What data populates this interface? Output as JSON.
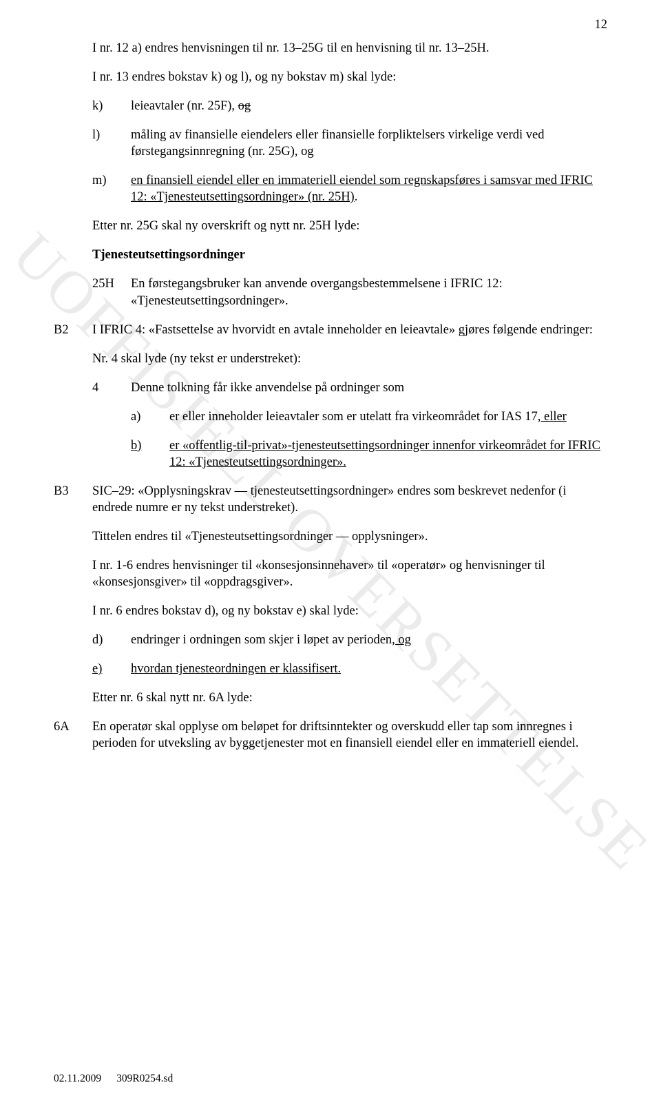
{
  "page_number": "12",
  "watermark": "UOFFISIELL OVERSETTELSE",
  "p1": "I nr. 12 a) endres henvisningen til nr. 13–25G til en henvisning til nr. 13–25H.",
  "p2": "I nr. 13 endres bokstav k) og l), og ny bokstav m) skal lyde:",
  "k": {
    "label": "k)",
    "text_pre": "leieavtaler (nr. 25F), ",
    "strike": "og"
  },
  "l": {
    "label": "l)",
    "text": "måling av finansielle eiendelers eller finansielle forpliktelsers virkelige verdi ved førstegangsinnregning (nr. 25G), og"
  },
  "m": {
    "label": "m)",
    "text_ul": "en finansiell eiendel eller en immateriell eiendel som regnskapsføres i samsvar med IFRIC 12: «Tjenesteutsettingsordninger» (nr. 25H)",
    "text_tail": "."
  },
  "p3": "Etter nr. 25G skal ny overskrift og nytt nr. 25H lyde:",
  "heading_bold": "Tjenesteutsettingsordninger",
  "h25H": {
    "label": "25H",
    "text": "En førstegangsbruker kan anvende overgangsbestemmelsene i IFRIC 12: «Tjenesteutsettingsordninger»."
  },
  "B2": {
    "label": "B2",
    "text": "I IFRIC 4: «Fastsettelse av hvorvidt en avtale inneholder en leieavtale» gjøres følgende endringer:"
  },
  "p4": "Nr. 4 skal lyde (ny tekst er understreket):",
  "item4": {
    "label": "4",
    "text": "Denne tolkning får ikke anvendelse på ordninger som"
  },
  "a": {
    "label": "a)",
    "pre": "er eller inneholder leieavtaler som er utelatt fra virkeområdet for IAS 17",
    "ul1": ", eller"
  },
  "b": {
    "label": "b)",
    "ul": "er «offentlig-til-privat»-tjenesteutsettingsordninger innenfor virkeområdet for IFRIC 12: «Tjenesteutsettingsordninger».",
    "tail": ""
  },
  "B3": {
    "label": "B3",
    "text": "SIC–29: «Opplysningskrav — tjenesteutsettingsordninger» endres som beskrevet nedenfor (i endrede numre er ny tekst understreket)."
  },
  "p5": "Tittelen endres til «Tjenesteutsettingsordninger — opplysninger».",
  "p6": "I nr. 1-6 endres henvisninger til «konsesjonsinnehaver» til «operatør» og henvisninger til «konsesjonsgiver» til «oppdragsgiver».",
  "p7": "I nr. 6 endres bokstav d), og ny bokstav e) skal lyde:",
  "d": {
    "label": "d)",
    "pre": "endringer i ordningen som skjer i løpet av perioden",
    "ul": ", og"
  },
  "e": {
    "label": "e)",
    "ul_label": "e)",
    "ul": "hvordan tjenesteordningen er klassifisert.",
    "tail": ""
  },
  "p8": "Etter nr. 6 skal nytt nr. 6A lyde:",
  "sixA": {
    "label": "6A",
    "text": "En operatør skal opplyse om beløpet for driftsinntekter og overskudd eller tap som innregnes i perioden for utveksling av byggetjenester mot en finansiell eiendel eller en immateriell eiendel."
  },
  "footer": {
    "date": "02.11.2009",
    "ref": "309R0254.sd"
  }
}
